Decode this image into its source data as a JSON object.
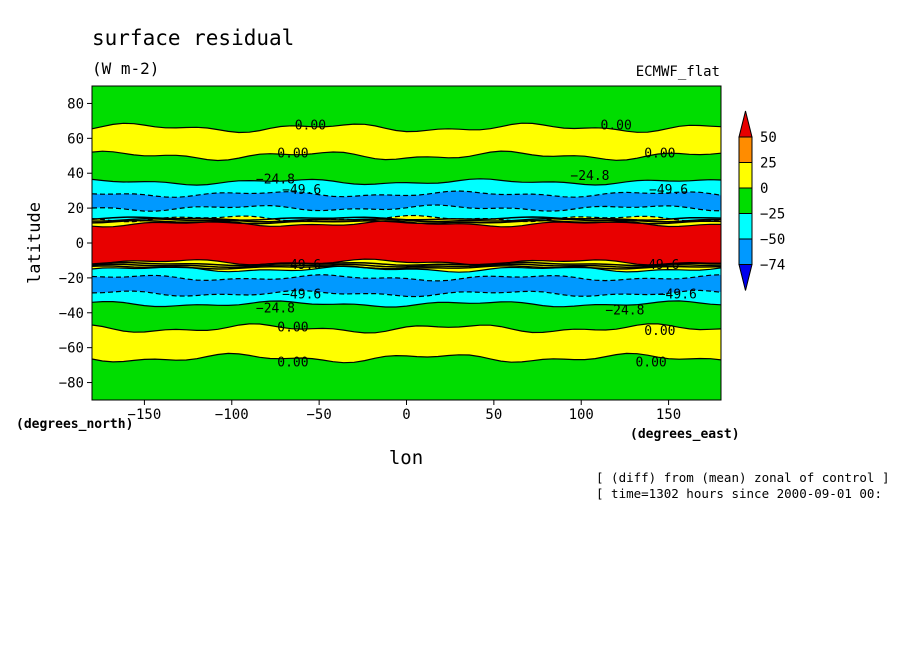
{
  "chart_data": {
    "type": "heatmap",
    "title": "surface residual",
    "subtitle": "(W m-2)",
    "experiment_label": "ECMWF_flat",
    "xlabel": "lon",
    "ylabel": "latitude",
    "x_units": "(degrees_east)",
    "y_units": "(degrees_north)",
    "xlim": [
      -180,
      180
    ],
    "ylim": [
      -90,
      90
    ],
    "x_ticks": [
      -150,
      -100,
      -50,
      0,
      50,
      100,
      150
    ],
    "x_tick_labels": [
      "−150",
      "−100",
      "−50",
      "0",
      "50",
      "100",
      "150"
    ],
    "y_ticks": [
      80,
      60,
      40,
      20,
      0,
      -20,
      -40,
      -60,
      -80
    ],
    "y_tick_labels": [
      "80",
      "60",
      "40",
      "20",
      "0",
      "−20",
      "−40",
      "−60",
      "−80"
    ],
    "colorbar": {
      "levels": [
        -74,
        -50,
        -25,
        0,
        25,
        50
      ],
      "labels": [
        "50",
        "25",
        "0",
        "−25",
        "−50",
        "−74"
      ],
      "colors": [
        "#e80000",
        "#ff8c00",
        "#ffff00",
        "#00dd00",
        "#00ffff",
        "#0099ff",
        "#0000ee"
      ],
      "color_names": [
        ">50",
        "25 to 50",
        "0 to 25",
        "-25 to 0",
        "-50 to -25",
        "-74 to -50",
        "<-74"
      ]
    },
    "contour_labels": [
      "0.00",
      "−24.8",
      "−49.6"
    ],
    "zonal_bands": [
      {
        "lat_from": 90,
        "lat_to": 66,
        "category": "-25 to 0"
      },
      {
        "lat_from": 66,
        "lat_to": 50,
        "category": "0 to 25"
      },
      {
        "lat_from": 50,
        "lat_to": 35,
        "category": "-25 to 0"
      },
      {
        "lat_from": 35,
        "lat_to": 28,
        "category": "-50 to -25"
      },
      {
        "lat_from": 28,
        "lat_to": 20,
        "category": "-74 to -50"
      },
      {
        "lat_from": 20,
        "lat_to": 14,
        "category": "-50 to -25"
      },
      {
        "lat_from": 14,
        "lat_to": 11,
        "category": "0 to 25"
      },
      {
        "lat_from": 11,
        "lat_to": -11,
        "category": ">50"
      },
      {
        "lat_from": -11,
        "lat_to": -15,
        "category": "0 to 25"
      },
      {
        "lat_from": -15,
        "lat_to": -20,
        "category": "-50 to -25"
      },
      {
        "lat_from": -20,
        "lat_to": -29,
        "category": "-74 to -50"
      },
      {
        "lat_from": -29,
        "lat_to": -35,
        "category": "-50 to -25"
      },
      {
        "lat_from": -35,
        "lat_to": -49,
        "category": "-25 to 0"
      },
      {
        "lat_from": -49,
        "lat_to": -66,
        "category": "0 to 25"
      },
      {
        "lat_from": -66,
        "lat_to": -90,
        "category": "-25 to 0"
      }
    ],
    "grid": false,
    "legend_placement": "right"
  },
  "footer": {
    "line1": "[ (diff) from (mean) zonal of control ]",
    "line2": "[ time=1302 hours since 2000-09-01 00:"
  }
}
